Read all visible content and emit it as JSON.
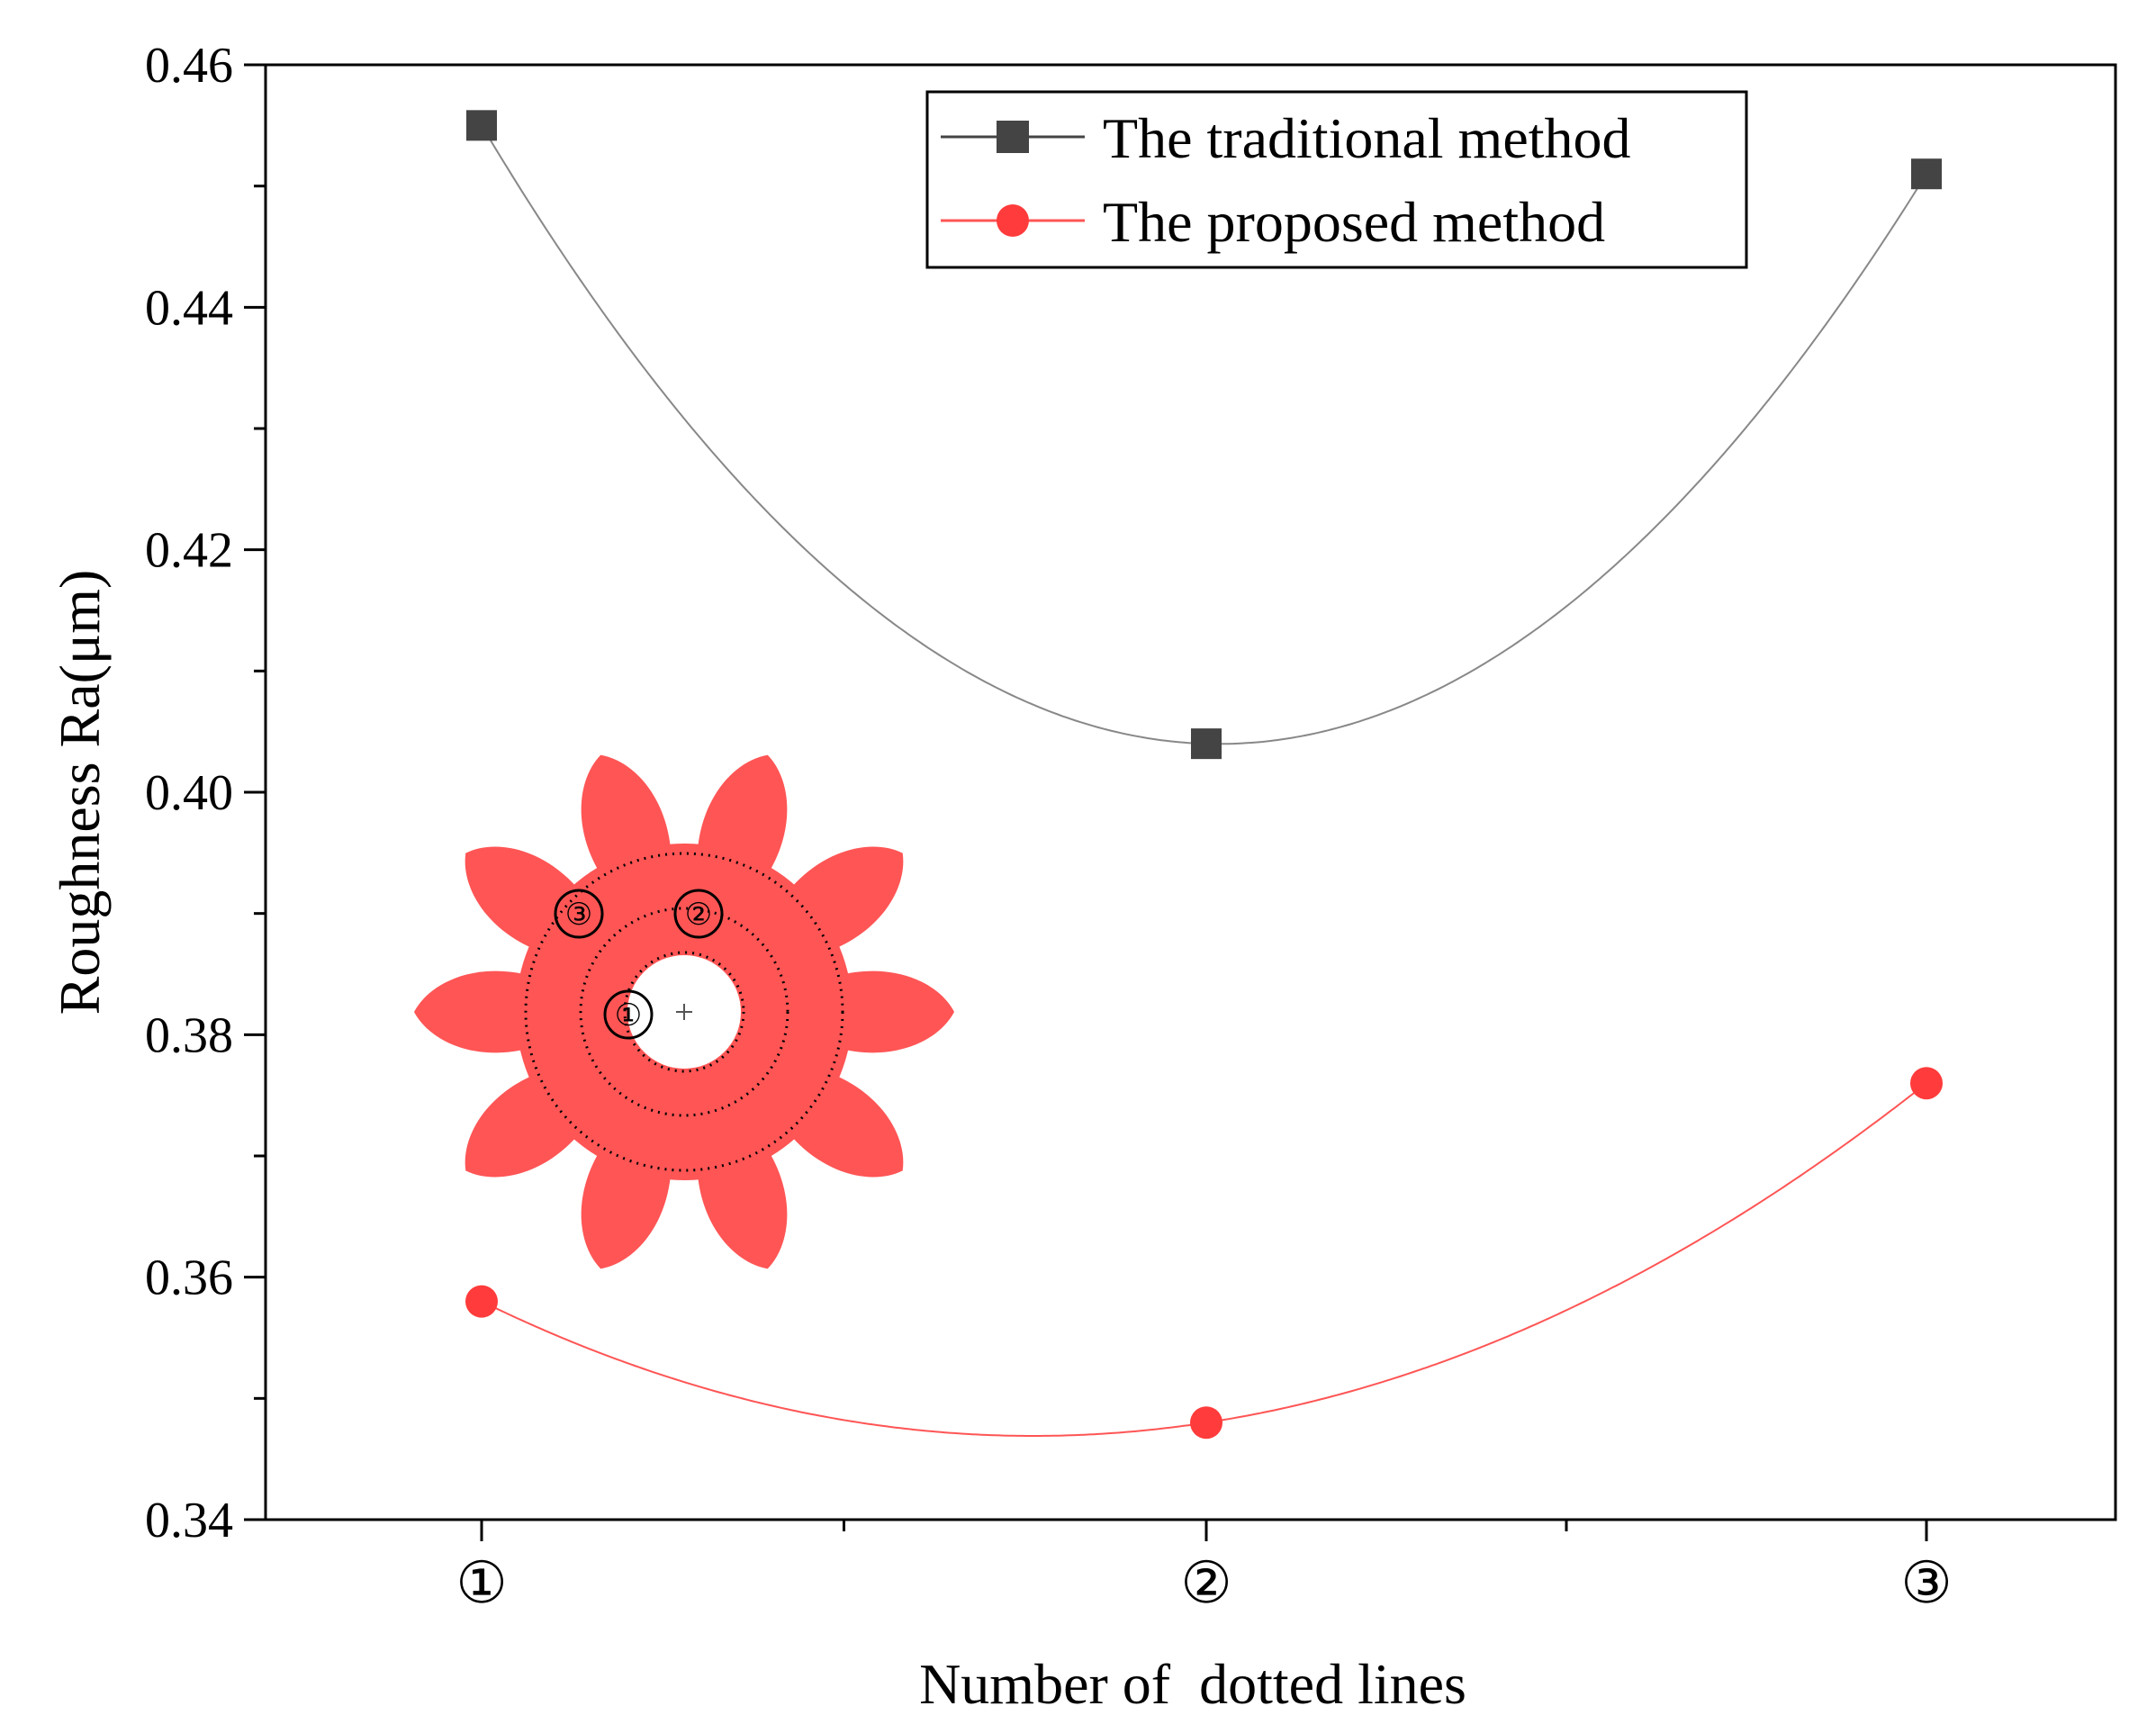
{
  "chart_data": {
    "type": "line",
    "title": "",
    "xlabel": "Number of  dotted lines",
    "ylabel": "Roughness Ra(μm)",
    "categories": [
      "①",
      "②",
      "③"
    ],
    "ylim": [
      0.34,
      0.46
    ],
    "yticks": [
      "0.34",
      "0.36",
      "0.38",
      "0.40",
      "0.42",
      "0.44",
      "0.46"
    ],
    "grid": false,
    "legend_position": "top-right",
    "smooth": true,
    "series": [
      {
        "name": "The traditional method",
        "values": [
          0.455,
          0.404,
          0.451
        ],
        "color": "#444444",
        "marker": "square",
        "line_color": "#888888"
      },
      {
        "name": "The proposed method",
        "values": [
          0.358,
          0.348,
          0.376
        ],
        "color": "#ff3b3b",
        "marker": "circle",
        "line_color": "#ff5555"
      }
    ]
  },
  "inset": {
    "gear_color": "#ff5555",
    "labels": [
      "①",
      "②",
      "③"
    ]
  }
}
